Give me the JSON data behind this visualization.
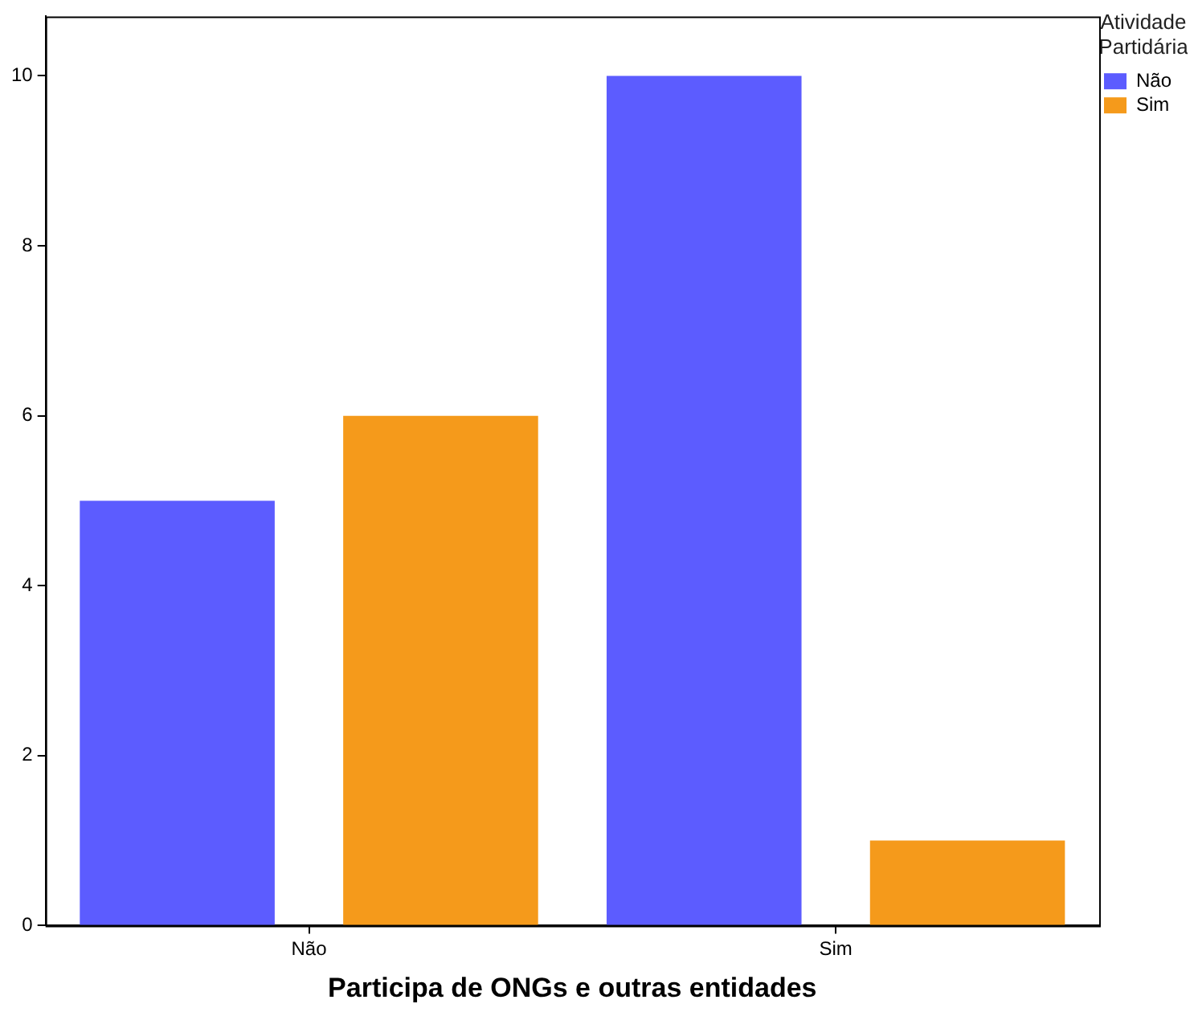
{
  "chart_data": {
    "type": "bar",
    "xlabel": "Participa de ONGs e outras entidades",
    "legend_title": "Atividade Partidária",
    "categories": [
      "Não",
      "Sim"
    ],
    "series": [
      {
        "name": "Não",
        "color": "#5c5cff",
        "values": [
          5,
          10
        ]
      },
      {
        "name": "Sim",
        "color": "#f59a1b",
        "values": [
          6,
          1
        ]
      }
    ],
    "ylim": [
      0,
      10.7
    ],
    "yticks": [
      0,
      2,
      4,
      6,
      8,
      10
    ],
    "grid": false,
    "legend": "top right"
  }
}
